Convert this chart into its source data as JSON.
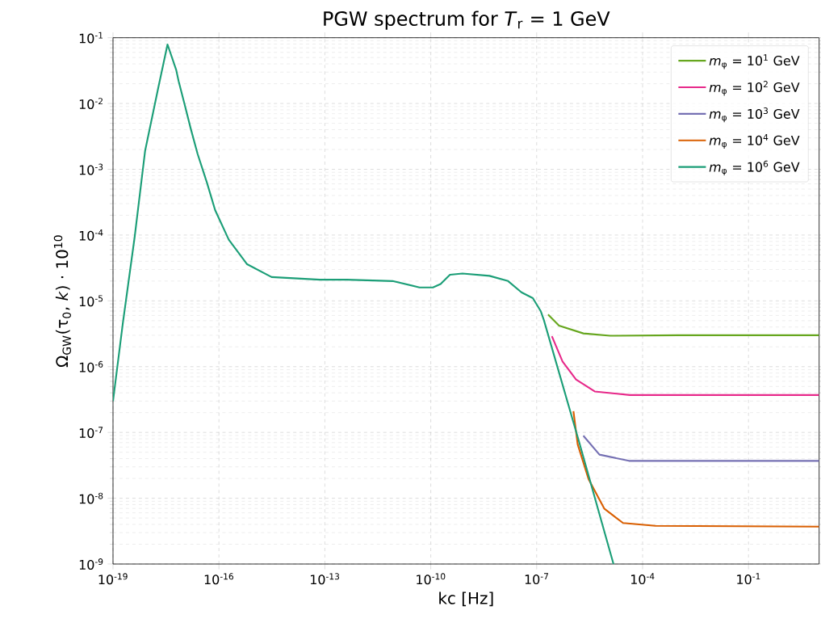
{
  "chart_data": {
    "type": "line",
    "title": "PGW spectrum for *T*$_{r}$ = 1 GeV",
    "xlabel": "kc [Hz]",
    "ylabel": "Ω$_{GW}$(τ$_{0}$, *k*) · 10$^{10}$",
    "log": "xy",
    "grid": true,
    "legend": "top right",
    "xlim": [
      1e-19,
      10
    ],
    "ylim": [
      1e-09,
      0.1
    ],
    "xticks": [
      {
        "value": 1e-19,
        "label": "10$^{-19}$"
      },
      {
        "value": 1e-16,
        "label": "10$^{-16}$"
      },
      {
        "value": 1e-13,
        "label": "10$^{-13}$"
      },
      {
        "value": 1e-10,
        "label": "10$^{-10}$"
      },
      {
        "value": 1e-07,
        "label": "10$^{-7}$"
      },
      {
        "value": 0.0001,
        "label": "10$^{-4}$"
      },
      {
        "value": 0.1,
        "label": "10$^{-1}$"
      }
    ],
    "yticks": [
      {
        "value": 1e-09,
        "label": "10$^{-9}$"
      },
      {
        "value": 1e-08,
        "label": "10$^{-8}$"
      },
      {
        "value": 1e-07,
        "label": "10$^{-7}$"
      },
      {
        "value": 1e-06,
        "label": "10$^{-6}$"
      },
      {
        "value": 1e-05,
        "label": "10$^{-5}$"
      },
      {
        "value": 0.0001,
        "label": "10$^{-4}$"
      },
      {
        "value": 0.001,
        "label": "10$^{-3}$"
      },
      {
        "value": 0.01,
        "label": "10$^{-2}$"
      },
      {
        "value": 0.1,
        "label": "10$^{-1}$"
      }
    ],
    "series": [
      {
        "name": "*m*$_{φ}$ = 10$^{1}$ GeV",
        "color": "#66a61e",
        "x": [
          2.1e-07,
          4.3e-07,
          2.1e-06,
          1.2e-05,
          0.001,
          10
        ],
        "values": [
          6.2e-06,
          4.2e-06,
          3.2e-06,
          2.95e-06,
          3e-06,
          3e-06
        ]
      },
      {
        "name": "*m*$_{φ}$ = 10$^{2}$ GeV",
        "color": "#e7298a",
        "x": [
          2.7e-07,
          5.4e-07,
          1.3e-06,
          4.4e-06,
          4.3e-05,
          10
        ],
        "values": [
          2.9e-06,
          1.2e-06,
          6.4e-07,
          4.2e-07,
          3.7e-07,
          3.7e-07
        ]
      },
      {
        "name": "*m*$_{φ}$ = 10$^{3}$ GeV",
        "color": "#7570b3",
        "x": [
          2.1e-06,
          6e-06,
          4.1e-05,
          10
        ],
        "values": [
          8.9e-08,
          4.6e-08,
          3.7e-08,
          3.7e-08
        ]
      },
      {
        "name": "*m*$_{φ}$ = 10$^{4}$ GeV",
        "color": "#d95f02",
        "x": [
          1.1e-06,
          1.45e-06,
          2.95e-06,
          8.3e-06,
          2.8e-05,
          0.00023,
          10
        ],
        "values": [
          2.1e-07,
          6.6e-08,
          1.95e-08,
          6.9e-09,
          4.2e-09,
          3.8e-09,
          3.7e-09
        ]
      },
      {
        "name": "*m*$_{φ}$ = 10$^{6}$ GeV",
        "color": "#1b9e77",
        "x": [
          1e-19,
          1.9e-19,
          4.1e-19,
          8.1e-19,
          1.9e-18,
          3.5e-18,
          6.2e-18,
          7.2e-18,
          1.05e-17,
          1.6e-17,
          2.5e-17,
          4.6e-17,
          7.8e-17,
          1.9e-16,
          6.3e-16,
          3.1e-15,
          7.2e-14,
          4.2e-13,
          8.3e-12,
          4.8e-11,
          1.15e-10,
          1.9e-10,
          3.5e-10,
          7.9e-10,
          4.6e-09,
          1.55e-08,
          3.7e-08,
          7.8e-08,
          1.3e-07,
          1.6e-07,
          1.6e-06,
          1.5e-05
        ],
        "values": [
          3e-07,
          4.6e-06,
          9.3e-05,
          0.0019,
          0.017,
          0.079,
          0.032,
          0.022,
          0.01,
          0.0041,
          0.0017,
          0.00062,
          0.00024,
          8.5e-05,
          3.6e-05,
          2.3e-05,
          2.1e-05,
          2.1e-05,
          2e-05,
          1.6e-05,
          1.6e-05,
          1.8e-05,
          2.5e-05,
          2.6e-05,
          2.4e-05,
          2e-05,
          1.35e-05,
          1.1e-05,
          7e-06,
          5.1e-06,
          7.1e-08,
          1e-09
        ]
      }
    ]
  }
}
